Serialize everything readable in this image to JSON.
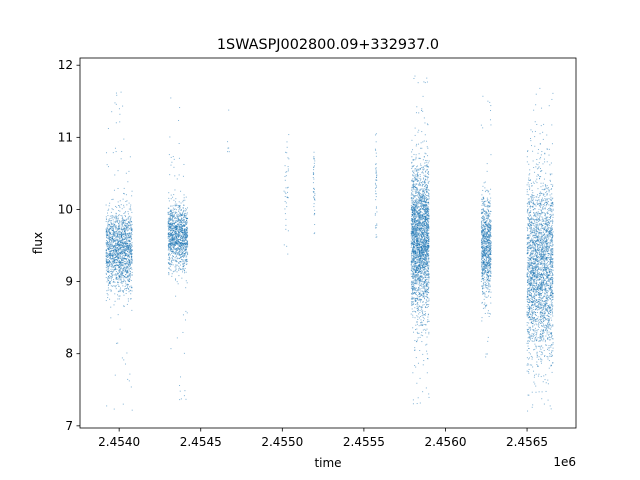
{
  "chart_data": {
    "type": "scatter",
    "title": "1SWASPJ002800.09+332937.0",
    "xlabel": "time",
    "ylabel": "flux",
    "x_offset_label": "1e6",
    "x_scale": 1000000,
    "xlim": [
      2.45376,
      2.4568
    ],
    "ylim": [
      6.97,
      12.1
    ],
    "x_ticks": [
      2.454,
      2.4545,
      2.455,
      2.4555,
      2.456,
      2.4565
    ],
    "x_tick_labels": [
      "2.4540",
      "2.4545",
      "2.4550",
      "2.4555",
      "2.4560",
      "2.4565"
    ],
    "y_ticks": [
      7,
      8,
      9,
      10,
      11,
      12
    ],
    "y_tick_labels": [
      "7",
      "8",
      "9",
      "10",
      "11",
      "12"
    ],
    "grid": false,
    "legend": "none",
    "marker_color": "#1f77b4",
    "clusters": [
      {
        "x_start": 2.45392,
        "x_end": 2.45408,
        "center": 9.45,
        "spread": 0.28,
        "y_min": 7.2,
        "y_max": 11.8,
        "count": 1600
      },
      {
        "x_start": 2.4543,
        "x_end": 2.45442,
        "center": 9.62,
        "spread": 0.22,
        "y_min": 7.3,
        "y_max": 11.6,
        "count": 1200
      },
      {
        "x_start": 2.45466,
        "x_end": 2.45468,
        "center": 10.9,
        "spread": 0.35,
        "y_min": 10.8,
        "y_max": 11.4,
        "count": 6
      },
      {
        "x_start": 2.45501,
        "x_end": 2.45504,
        "center": 10.2,
        "spread": 0.4,
        "y_min": 8.9,
        "y_max": 11.1,
        "count": 40
      },
      {
        "x_start": 2.45519,
        "x_end": 2.4552,
        "center": 10.3,
        "spread": 0.35,
        "y_min": 9.6,
        "y_max": 10.8,
        "count": 40
      },
      {
        "x_start": 2.45557,
        "x_end": 2.45558,
        "center": 10.4,
        "spread": 0.35,
        "y_min": 9.6,
        "y_max": 11.1,
        "count": 45
      },
      {
        "x_start": 2.45579,
        "x_end": 2.4559,
        "center": 9.55,
        "spread": 0.5,
        "y_min": 7.2,
        "y_max": 11.85,
        "count": 2600
      },
      {
        "x_start": 2.45622,
        "x_end": 2.45628,
        "center": 9.5,
        "spread": 0.32,
        "y_min": 7.8,
        "y_max": 11.6,
        "count": 900
      },
      {
        "x_start": 2.4565,
        "x_end": 2.45666,
        "center": 9.2,
        "spread": 0.62,
        "y_min": 7.2,
        "y_max": 11.7,
        "count": 2600
      }
    ]
  }
}
